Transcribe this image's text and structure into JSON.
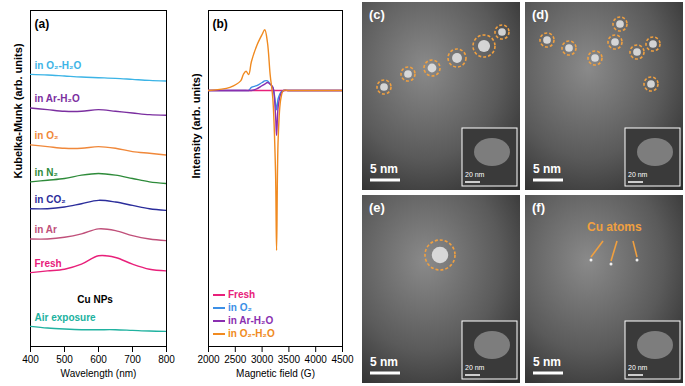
{
  "chart_data": [
    {
      "type": "line",
      "title": "(a)",
      "x_label": "Wavelength (nm)",
      "y_label": "Kubelka-Munk (arb. units)",
      "x": [
        400,
        450,
        500,
        550,
        600,
        650,
        700,
        750,
        800
      ],
      "xlim": [
        400,
        800
      ],
      "xticks": [
        400,
        500,
        600,
        700,
        800
      ],
      "ylim": [
        0,
        10
      ],
      "tick_labels": "x",
      "series": [
        {
          "name": "in O₂-H₂O",
          "color": "#3cb4e6",
          "values": [
            8.1,
            8.08,
            8.05,
            8.02,
            8.0,
            7.98,
            7.95,
            7.92,
            7.9
          ]
        },
        {
          "name": "in Ar-H₂O",
          "color": "#7b2fa0",
          "values": [
            7.1,
            7.05,
            7.0,
            7.0,
            7.05,
            7.0,
            6.95,
            6.9,
            6.88
          ]
        },
        {
          "name": "in O₂",
          "color": "#f0883a",
          "values": [
            6.0,
            5.95,
            5.9,
            5.9,
            5.95,
            5.9,
            5.8,
            5.75,
            5.7
          ]
        },
        {
          "name": "in N₂",
          "color": "#2e8b3a",
          "values": [
            4.9,
            4.95,
            5.0,
            5.1,
            5.15,
            5.1,
            5.0,
            4.9,
            4.85
          ]
        },
        {
          "name": "in CO₂",
          "color": "#2b2d9b",
          "values": [
            4.1,
            4.1,
            4.15,
            4.25,
            4.35,
            4.3,
            4.2,
            4.1,
            4.05
          ]
        },
        {
          "name": "in Ar",
          "color": "#c0507a",
          "values": [
            3.2,
            3.2,
            3.25,
            3.35,
            3.5,
            3.45,
            3.3,
            3.2,
            3.15
          ]
        },
        {
          "name": "Fresh",
          "color": "#e8207a",
          "values": [
            2.2,
            2.25,
            2.3,
            2.45,
            2.7,
            2.65,
            2.45,
            2.3,
            2.25
          ]
        },
        {
          "name": "Air exposure",
          "color": "#20b2a0",
          "values": [
            0.6,
            0.55,
            0.52,
            0.5,
            0.5,
            0.5,
            0.48,
            0.46,
            0.45
          ]
        }
      ],
      "annotations": [
        {
          "text": "Cu NPs",
          "x": 590,
          "y": 1.4
        }
      ]
    },
    {
      "type": "line",
      "title": "(b)",
      "x_label": "Magnetic field (G)",
      "y_label": "Intensity (arb. units)",
      "x": [
        2000,
        2400,
        2600,
        2650,
        2700,
        2750,
        2800,
        2900,
        3000,
        3050,
        3100,
        3150,
        3200,
        3250,
        3270,
        3300,
        3350,
        3400,
        3500,
        4000,
        4500
      ],
      "xlim": [
        2000,
        4500
      ],
      "xticks": [
        2000,
        2500,
        3000,
        3500,
        4000,
        4500
      ],
      "ylim": [
        -1.6,
        0.5
      ],
      "tick_labels": "x",
      "legend": "lower-left",
      "series": [
        {
          "name": "Fresh",
          "color": "#e8207a",
          "values": [
            0,
            0,
            0,
            0,
            0,
            0,
            0,
            0,
            0,
            0,
            0,
            0,
            0,
            0,
            0,
            0,
            0,
            0,
            0,
            0,
            0
          ]
        },
        {
          "name": "in O₂",
          "color": "#3c8fe6",
          "values": [
            0,
            0,
            0,
            0,
            0,
            0,
            0.02,
            0.03,
            0.05,
            0.06,
            0.06,
            0.04,
            0.02,
            -0.08,
            -0.12,
            -0.05,
            -0.01,
            0,
            0,
            0,
            0
          ]
        },
        {
          "name": "in Ar-H₂O",
          "color": "#8a2fb0",
          "values": [
            0,
            0,
            0,
            0,
            0,
            0,
            0,
            0.01,
            0.03,
            0.04,
            0.05,
            0.04,
            0.02,
            -0.15,
            -0.28,
            -0.1,
            -0.02,
            0,
            0,
            0,
            0
          ]
        },
        {
          "name": "in O₂-H₂O",
          "color": "#f08a20",
          "values": [
            0,
            0.02,
            0.06,
            0.1,
            0.12,
            0.1,
            0.18,
            0.28,
            0.35,
            0.38,
            0.3,
            0.1,
            -0.05,
            -0.5,
            -1.0,
            -0.3,
            -0.05,
            0,
            0,
            0,
            0
          ]
        }
      ]
    }
  ],
  "panels": [
    {
      "label": "(c)",
      "scale_bar": "5 nm",
      "inset_scale_bar": "20 nm"
    },
    {
      "label": "(d)",
      "scale_bar": "5 nm",
      "inset_scale_bar": "20 nm"
    },
    {
      "label": "(e)",
      "scale_bar": "5 nm",
      "inset_scale_bar": "20 nm"
    },
    {
      "label": "(f)",
      "scale_bar": "5 nm",
      "inset_scale_bar": "20 nm",
      "annotation": "Cu atoms"
    }
  ]
}
